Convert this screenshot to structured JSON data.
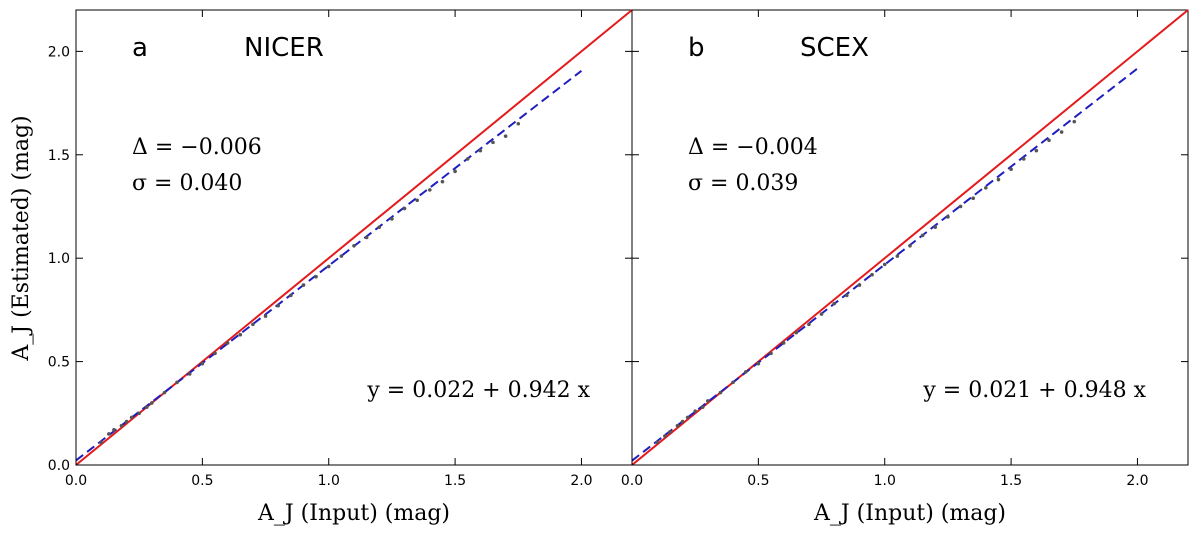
{
  "chart_data": [
    {
      "type": "scatter",
      "panel_letter": "a",
      "panel_title": "NICER",
      "xlabel": "A_J (Input) (mag)",
      "ylabel": "A_J (Estimated) (mag)",
      "xlim": [
        0.0,
        2.2
      ],
      "ylim": [
        0.0,
        2.2
      ],
      "xticks": [
        "0.0",
        "0.5",
        "1.0",
        "1.5",
        "2.0"
      ],
      "yticks": [
        "0.0",
        "0.5",
        "1.0",
        "1.5",
        "2.0"
      ],
      "delta_text": "Δ = −0.006",
      "sigma_text": "σ = 0.040",
      "fit_text": "y = 0.022 + 0.942 x",
      "series": [
        {
          "name": "one-to-one",
          "style": "solid",
          "color": "#e41a1c",
          "x": [
            0.0,
            2.2
          ],
          "y": [
            0.0,
            2.2
          ]
        },
        {
          "name": "linear fit",
          "style": "dashed",
          "color": "#1f1fbf",
          "intercept": 0.022,
          "slope": 0.942,
          "x": [
            0.0,
            2.0
          ]
        },
        {
          "name": "data points",
          "style": "points",
          "color": "#555555",
          "x": [
            0.1,
            0.13,
            0.15,
            0.18,
            0.2,
            0.22,
            0.25,
            0.28,
            0.3,
            0.35,
            0.4,
            0.45,
            0.5,
            0.55,
            0.6,
            0.65,
            0.7,
            0.75,
            0.8,
            0.85,
            0.9,
            0.95,
            1.0,
            1.05,
            1.1,
            1.15,
            1.2,
            1.25,
            1.3,
            1.35,
            1.4,
            1.45,
            1.5,
            1.55,
            1.6,
            1.65,
            1.7,
            1.75
          ],
          "y": [
            0.11,
            0.15,
            0.17,
            0.19,
            0.21,
            0.23,
            0.25,
            0.28,
            0.3,
            0.35,
            0.4,
            0.44,
            0.49,
            0.54,
            0.59,
            0.63,
            0.68,
            0.72,
            0.77,
            0.82,
            0.87,
            0.91,
            0.96,
            1.01,
            1.06,
            1.1,
            1.15,
            1.19,
            1.24,
            1.28,
            1.33,
            1.37,
            1.42,
            1.48,
            1.52,
            1.56,
            1.59,
            1.65
          ]
        }
      ]
    },
    {
      "type": "scatter",
      "panel_letter": "b",
      "panel_title": "SCEX",
      "xlabel": "A_J (Input) (mag)",
      "xlim": [
        0.0,
        2.2
      ],
      "ylim": [
        0.0,
        2.2
      ],
      "xticks": [
        "0.0",
        "0.5",
        "1.0",
        "1.5",
        "2.0"
      ],
      "delta_text": "Δ = −0.004",
      "sigma_text": "σ = 0.039",
      "fit_text": "y = 0.021 + 0.948 x",
      "series": [
        {
          "name": "one-to-one",
          "style": "solid",
          "color": "#e41a1c",
          "x": [
            0.0,
            2.2
          ],
          "y": [
            0.0,
            2.2
          ]
        },
        {
          "name": "linear fit",
          "style": "dashed",
          "color": "#1f1fbf",
          "intercept": 0.021,
          "slope": 0.948,
          "x": [
            0.0,
            2.0
          ]
        },
        {
          "name": "data points",
          "style": "points",
          "color": "#555555",
          "x": [
            0.1,
            0.13,
            0.15,
            0.18,
            0.2,
            0.22,
            0.25,
            0.28,
            0.3,
            0.35,
            0.4,
            0.45,
            0.5,
            0.55,
            0.6,
            0.65,
            0.7,
            0.75,
            0.8,
            0.85,
            0.9,
            0.95,
            1.0,
            1.05,
            1.1,
            1.15,
            1.2,
            1.25,
            1.3,
            1.35,
            1.4,
            1.45,
            1.5,
            1.55,
            1.6,
            1.65,
            1.7,
            1.75
          ],
          "y": [
            0.11,
            0.14,
            0.16,
            0.19,
            0.21,
            0.23,
            0.26,
            0.28,
            0.31,
            0.35,
            0.4,
            0.45,
            0.49,
            0.54,
            0.59,
            0.64,
            0.68,
            0.73,
            0.78,
            0.82,
            0.87,
            0.92,
            0.97,
            1.01,
            1.06,
            1.11,
            1.15,
            1.2,
            1.25,
            1.29,
            1.34,
            1.38,
            1.43,
            1.48,
            1.52,
            1.57,
            1.61,
            1.66
          ]
        }
      ]
    }
  ]
}
